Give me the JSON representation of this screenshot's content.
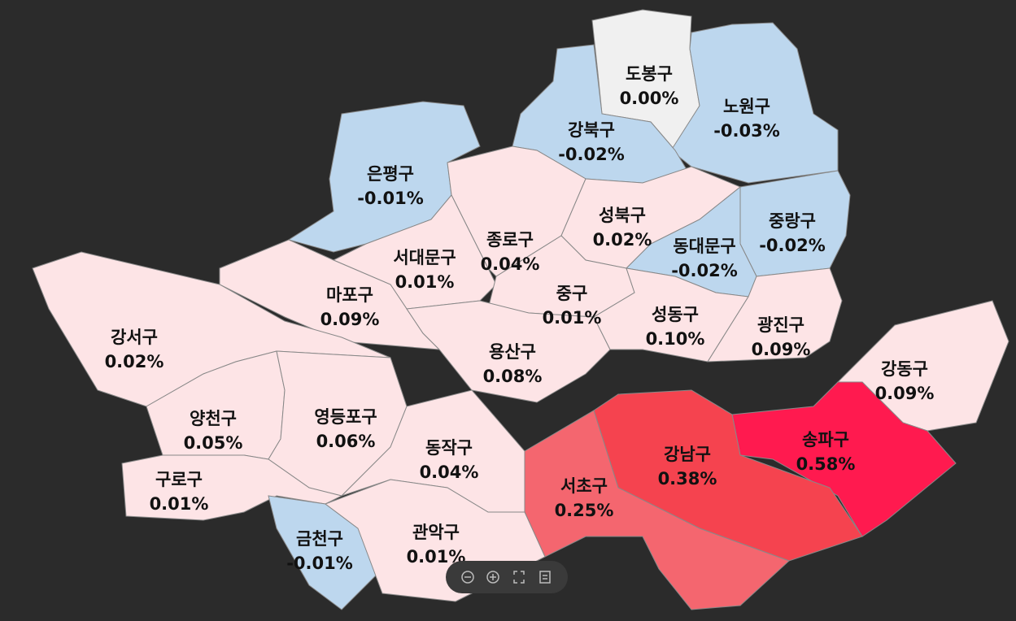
{
  "districts": [
    {
      "name": "도봉구",
      "value": 0.0,
      "value_label": "0.00%",
      "color": "#f0f0f0"
    },
    {
      "name": "노원구",
      "value": -0.03,
      "value_label": "-0.03%",
      "color": "#bdd7ee"
    },
    {
      "name": "강북구",
      "value": -0.02,
      "value_label": "-0.02%",
      "color": "#bdd7ee"
    },
    {
      "name": "은평구",
      "value": -0.01,
      "value_label": "-0.01%",
      "color": "#bdd7ee"
    },
    {
      "name": "종로구",
      "value": 0.04,
      "value_label": "0.04%",
      "color": "#fde4e6"
    },
    {
      "name": "성북구",
      "value": 0.02,
      "value_label": "0.02%",
      "color": "#fde4e6"
    },
    {
      "name": "중랑구",
      "value": -0.02,
      "value_label": "-0.02%",
      "color": "#bdd7ee"
    },
    {
      "name": "동대문구",
      "value": -0.02,
      "value_label": "-0.02%",
      "color": "#bdd7ee"
    },
    {
      "name": "서대문구",
      "value": 0.01,
      "value_label": "0.01%",
      "color": "#fde4e6"
    },
    {
      "name": "마포구",
      "value": 0.09,
      "value_label": "0.09%",
      "color": "#fde4e6"
    },
    {
      "name": "중구",
      "value": 0.01,
      "value_label": "0.01%",
      "color": "#fde4e6"
    },
    {
      "name": "용산구",
      "value": 0.08,
      "value_label": "0.08%",
      "color": "#fde4e6"
    },
    {
      "name": "성동구",
      "value": 0.1,
      "value_label": "0.10%",
      "color": "#fde4e6"
    },
    {
      "name": "광진구",
      "value": 0.09,
      "value_label": "0.09%",
      "color": "#fde4e6"
    },
    {
      "name": "강동구",
      "value": 0.09,
      "value_label": "0.09%",
      "color": "#fde4e6"
    },
    {
      "name": "송파구",
      "value": 0.58,
      "value_label": "0.58%",
      "color": "#ff1a4f"
    },
    {
      "name": "강남구",
      "value": 0.38,
      "value_label": "0.38%",
      "color": "#f5434f"
    },
    {
      "name": "서초구",
      "value": 0.25,
      "value_label": "0.25%",
      "color": "#f4666f"
    },
    {
      "name": "강서구",
      "value": 0.02,
      "value_label": "0.02%",
      "color": "#fde4e6"
    },
    {
      "name": "양천구",
      "value": 0.05,
      "value_label": "0.05%",
      "color": "#fde4e6"
    },
    {
      "name": "영등포구",
      "value": 0.06,
      "value_label": "0.06%",
      "color": "#fde4e6"
    },
    {
      "name": "구로구",
      "value": 0.01,
      "value_label": "0.01%",
      "color": "#fde4e6"
    },
    {
      "name": "동작구",
      "value": 0.04,
      "value_label": "0.04%",
      "color": "#fde4e6"
    },
    {
      "name": "금천구",
      "value": -0.01,
      "value_label": "-0.01%",
      "color": "#bdd7ee"
    },
    {
      "name": "관악구",
      "value": 0.01,
      "value_label": "0.01%",
      "color": "#fde4e6"
    }
  ]
}
